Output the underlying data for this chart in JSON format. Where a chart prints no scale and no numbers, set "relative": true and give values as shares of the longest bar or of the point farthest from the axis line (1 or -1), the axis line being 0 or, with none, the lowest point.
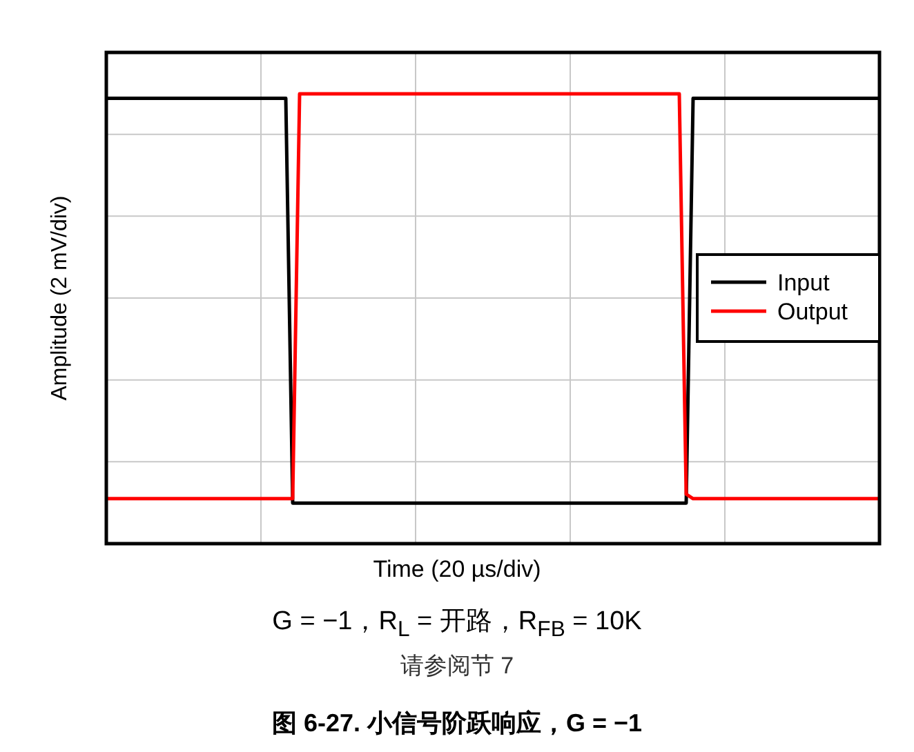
{
  "chart_data": {
    "type": "line",
    "title": "**图 6-27. 小信号阶跃响应，G = −1**",
    "xlabel": "Time (20 µs/div)",
    "ylabel": "Amplitude (2 mV/div)",
    "annotations": [
      "G = −1，R$_{L}$ = 开路，R$_{FB}$ = 10K",
      "请参阅节 7"
    ],
    "relative": true,
    "grid": true,
    "legend": "right",
    "categories": [
      null,
      null,
      null,
      null,
      null,
      null,
      null,
      null,
      null,
      null,
      null,
      null,
      null,
      null,
      null,
      null,
      null,
      null,
      null,
      null,
      null,
      null,
      null,
      null,
      null,
      null,
      null,
      null,
      null,
      null,
      null,
      null,
      null,
      null,
      null,
      null,
      null,
      null,
      null,
      null,
      null,
      null,
      null,
      null,
      null,
      null,
      null,
      null,
      null,
      null,
      null,
      null,
      null,
      null,
      null,
      null,
      null,
      null,
      null,
      null,
      null,
      null,
      null,
      null,
      null,
      null,
      null,
      null,
      null,
      null,
      null,
      null,
      null,
      null,
      null,
      null,
      null,
      null,
      null,
      null,
      null,
      null,
      null,
      null,
      null,
      null,
      null,
      null,
      null,
      null,
      null,
      null,
      null,
      null,
      null,
      null,
      null,
      null,
      null,
      null,
      null,
      null,
      null,
      null,
      null,
      null,
      null,
      null,
      null,
      null,
      null,
      null,
      null
    ],
    "series": [
      {
        "name": "Input",
        "color": "#000000",
        "values": [
          0.99,
          0.99,
          0.99,
          0.99,
          0.99,
          0.99,
          0.99,
          0.99,
          0.99,
          0.99,
          0.99,
          0.99,
          0.99,
          0.99,
          0.99,
          0.99,
          0.99,
          0.99,
          0.99,
          0.99,
          0.99,
          0.99,
          0.99,
          0.99,
          0.99,
          0.99,
          0.99,
          0.09,
          0.09,
          0.09,
          0.09,
          0.09,
          0.09,
          0.09,
          0.09,
          0.09,
          0.09,
          0.09,
          0.09,
          0.09,
          0.09,
          0.09,
          0.09,
          0.09,
          0.09,
          0.09,
          0.09,
          0.09,
          0.09,
          0.09,
          0.09,
          0.09,
          0.09,
          0.09,
          0.09,
          0.09,
          0.09,
          0.09,
          0.09,
          0.09,
          0.09,
          0.09,
          0.09,
          0.09,
          0.09,
          0.09,
          0.09,
          0.09,
          0.09,
          0.09,
          0.09,
          0.09,
          0.09,
          0.09,
          0.09,
          0.09,
          0.09,
          0.09,
          0.09,
          0.09,
          0.09,
          0.09,
          0.09,
          0.09,
          0.09,
          0.99,
          0.99,
          0.99,
          0.99,
          0.99,
          0.99,
          0.99,
          0.99,
          0.99,
          0.99,
          0.99,
          0.99,
          0.99,
          0.99,
          0.99,
          0.99,
          0.99,
          0.99,
          0.99,
          0.99,
          0.99,
          0.99,
          0.99,
          0.99,
          0.99,
          0.99,
          0.99,
          0.99
        ]
      },
      {
        "name": "Output",
        "color": "#ff0000",
        "values": [
          0.1,
          0.1,
          0.1,
          0.1,
          0.1,
          0.1,
          0.1,
          0.1,
          0.1,
          0.1,
          0.1,
          0.1,
          0.1,
          0.1,
          0.1,
          0.1,
          0.1,
          0.1,
          0.1,
          0.1,
          0.1,
          0.1,
          0.1,
          0.1,
          0.1,
          0.1,
          0.1,
          0.1,
          1,
          1,
          1,
          1,
          1,
          1,
          1,
          1,
          1,
          1,
          1,
          1,
          1,
          1,
          1,
          1,
          1,
          1,
          1,
          1,
          1,
          1,
          1,
          1,
          1,
          1,
          1,
          1,
          1,
          1,
          1,
          1,
          1,
          1,
          1,
          1,
          1,
          1,
          1,
          1,
          1,
          1,
          1,
          1,
          1,
          1,
          1,
          1,
          1,
          1,
          1,
          1,
          1,
          1,
          1,
          1,
          0.11,
          0.1,
          0.1,
          0.1,
          0.1,
          0.1,
          0.1,
          0.1,
          0.1,
          0.1,
          0.1,
          0.1,
          0.1,
          0.1,
          0.1,
          0.1,
          0.1,
          0.1,
          0.1,
          0.1,
          0.1,
          0.1,
          0.1,
          0.1,
          0.1,
          0.1,
          0.1,
          0.1,
          0.1
        ]
      }
    ]
  }
}
